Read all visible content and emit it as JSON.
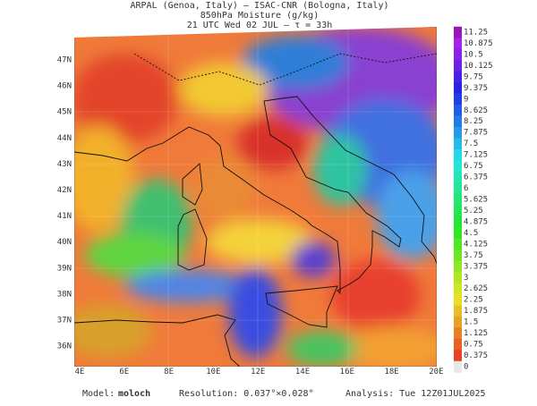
{
  "header": {
    "line1": "ARPAL (Genoa, Italy)  —  ISAC-CNR (Bologna, Italy)",
    "line2": "850hPa Moisture (g/kg)",
    "line3": "21 UTC Wed 02 JUL  –  τ = 33h"
  },
  "map": {
    "lat_labels": [
      "47N",
      "46N",
      "45N",
      "44N",
      "43N",
      "42N",
      "41N",
      "40N",
      "39N",
      "38N",
      "37N",
      "36N"
    ],
    "lon_labels": [
      "4E",
      "6E",
      "8E",
      "10E",
      "12E",
      "14E",
      "16E",
      "18E",
      "20E"
    ]
  },
  "colorbar": {
    "labels": [
      11.25,
      10.875,
      10.5,
      10.125,
      9.75,
      9.375,
      9,
      8.625,
      8.25,
      7.875,
      7.5,
      7.125,
      6.75,
      6.375,
      6,
      5.625,
      5.25,
      4.875,
      4.5,
      4.125,
      3.75,
      3.375,
      3,
      2.625,
      2.25,
      1.875,
      1.5,
      1.125,
      0.75,
      0.375,
      0
    ]
  },
  "footer": {
    "model_label": "Model:",
    "model": "moloch",
    "resolution": "Resolution: 0.037°×0.028°",
    "analysis": "Analysis: Tue 12Z01JUL2025"
  }
}
